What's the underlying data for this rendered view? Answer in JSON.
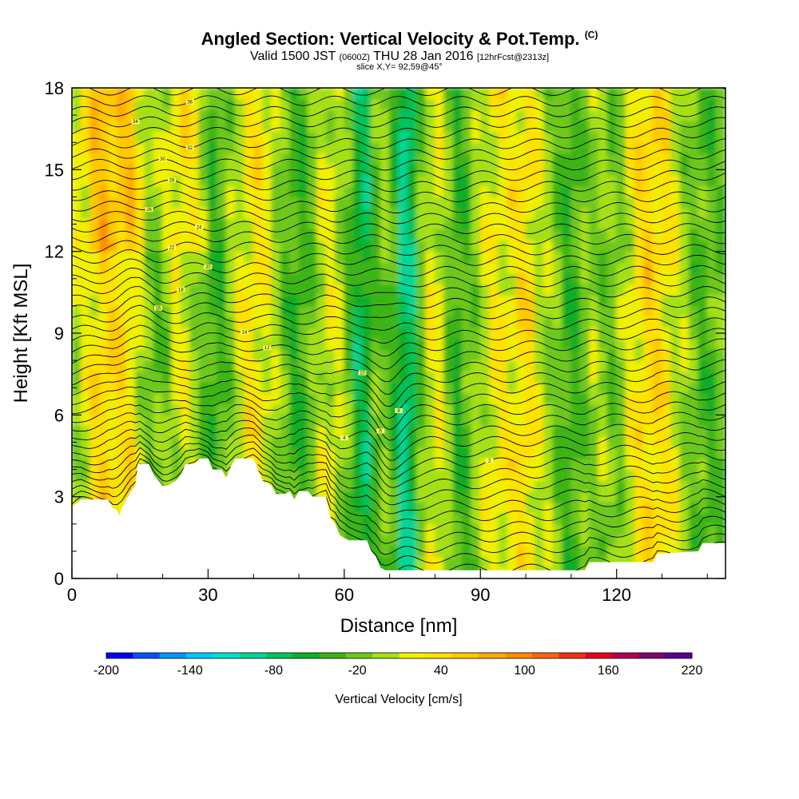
{
  "header": {
    "title": "Angled Section: Vertical Velocity & Pot.Temp.",
    "title_suffix": "(C)",
    "valid_prefix": "Valid 1500 JST",
    "valid_zulu": "(0600Z)",
    "valid_date": "THU 28 Jan 2016",
    "forecast": "[12hrFcst@2313z]",
    "slice": "slice X,Y= 92,59@45°"
  },
  "chart_data": {
    "type": "heatmap",
    "title": "Angled Section: Vertical Velocity & Pot.Temp.",
    "xlabel": "Distance [nm]",
    "ylabel": "Height [Kft MSL]",
    "xlim": [
      0,
      144
    ],
    "ylim": [
      0,
      18
    ],
    "x_ticks": [
      "0",
      "30",
      "60",
      "90",
      "120"
    ],
    "y_ticks": [
      "0",
      "3",
      "6",
      "9",
      "12",
      "15",
      "18"
    ],
    "colorbar": {
      "label": "Vertical Velocity [cm/s]",
      "tick_labels": [
        "-200",
        "-140",
        "-80",
        "-20",
        "40",
        "100",
        "160",
        "220"
      ],
      "levels": [
        -200,
        -180,
        -160,
        -140,
        -120,
        -100,
        -80,
        -60,
        -40,
        -20,
        0,
        20,
        40,
        60,
        80,
        100,
        120,
        140,
        160,
        180,
        200,
        220
      ],
      "colors": [
        "#0000f0",
        "#0a50ff",
        "#0096ff",
        "#00c8ff",
        "#00e0d2",
        "#00d796",
        "#00c35a",
        "#0faf28",
        "#3cb414",
        "#6ec81e",
        "#a5e016",
        "#f0f000",
        "#ffe100",
        "#ffc800",
        "#ffaa00",
        "#ff8c00",
        "#ff6414",
        "#f03214",
        "#e6001e",
        "#b4004b",
        "#82006e",
        "#5a0096"
      ]
    },
    "terrain_kft": [
      [
        0,
        2.6
      ],
      [
        2,
        2.9
      ],
      [
        8,
        2.9
      ],
      [
        9,
        2.6
      ],
      [
        10,
        2.5
      ],
      [
        10.5,
        2.3
      ],
      [
        11,
        2.6
      ],
      [
        12,
        2.9
      ],
      [
        13,
        3.2
      ],
      [
        14,
        3.4
      ],
      [
        14.5,
        4.2
      ],
      [
        17,
        4.2
      ],
      [
        18,
        3.8
      ],
      [
        19,
        3.6
      ],
      [
        20,
        3.4
      ],
      [
        21,
        3.4
      ],
      [
        23,
        3.6
      ],
      [
        24,
        3.8
      ],
      [
        25,
        4.2
      ],
      [
        27,
        4.2
      ],
      [
        28,
        4.4
      ],
      [
        30,
        4.4
      ],
      [
        31,
        4.0
      ],
      [
        33,
        4.0
      ],
      [
        34,
        3.7
      ],
      [
        35,
        4.1
      ],
      [
        36,
        4.4
      ],
      [
        40,
        4.4
      ],
      [
        41,
        4.0
      ],
      [
        42,
        3.6
      ],
      [
        44,
        3.4
      ],
      [
        45,
        3.1
      ],
      [
        47,
        3.1
      ],
      [
        48,
        3.2
      ],
      [
        49,
        2.9
      ],
      [
        50,
        3.2
      ],
      [
        52,
        3.2
      ],
      [
        53,
        3.0
      ],
      [
        56,
        3.0
      ],
      [
        57,
        2.2
      ],
      [
        58,
        2.0
      ],
      [
        59,
        1.6
      ],
      [
        61,
        1.4
      ],
      [
        65,
        1.4
      ],
      [
        66,
        1.0
      ],
      [
        67,
        0.8
      ],
      [
        68,
        0.4
      ],
      [
        69,
        0.3
      ],
      [
        113,
        0.3
      ],
      [
        114,
        0.6
      ],
      [
        128,
        0.6
      ],
      [
        129,
        0.9
      ],
      [
        138,
        1.0
      ],
      [
        139,
        1.3
      ],
      [
        144,
        1.3
      ]
    ],
    "theta_contour_labels": [
      "36",
      "34",
      "32",
      "30",
      "28",
      "26",
      "24",
      "22",
      "20",
      "18",
      "16",
      "14",
      "12",
      "10",
      "8",
      "6",
      "4",
      "2"
    ],
    "grid": false
  }
}
